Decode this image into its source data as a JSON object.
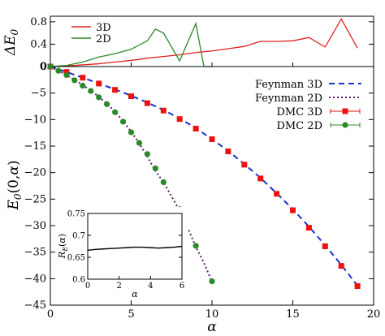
{
  "chart_data": [
    {
      "type": "line",
      "ylabel": "ΔE0",
      "xlim": [
        0,
        20
      ],
      "ylim": [
        0,
        0.9
      ],
      "yticks": [
        "0",
        "0.4",
        "0.8"
      ],
      "legend_position": "top-left",
      "series": [
        {
          "name": "3D",
          "color": "#e02020",
          "x": [
            0,
            1,
            2,
            3,
            4,
            5,
            6,
            7,
            8,
            9,
            10,
            11,
            12,
            13,
            14,
            15,
            16,
            17,
            18,
            19
          ],
          "y": [
            0.0,
            0.01,
            0.03,
            0.05,
            0.08,
            0.11,
            0.15,
            0.18,
            0.21,
            0.25,
            0.28,
            0.32,
            0.36,
            0.45,
            0.45,
            0.46,
            0.52,
            0.35,
            0.85,
            0.33
          ]
        },
        {
          "name": "2D",
          "color": "#2a8a2a",
          "x": [
            0,
            1,
            2,
            3,
            4,
            5,
            6,
            6.5,
            7,
            8,
            9,
            9.5,
            10
          ],
          "y": [
            0.0,
            0.02,
            0.08,
            0.17,
            0.23,
            0.31,
            0.46,
            0.67,
            0.6,
            0.1,
            0.77,
            0.0,
            0.0
          ]
        }
      ]
    },
    {
      "type": "scatter",
      "xlabel": "α",
      "ylabel": "E0(0,α)",
      "xlim": [
        0,
        20
      ],
      "ylim": [
        -45,
        0
      ],
      "xticks": [
        "0",
        "5",
        "10",
        "15",
        "20"
      ],
      "yticks": [
        "0",
        "-5",
        "-10",
        "-15",
        "-20",
        "-25",
        "-30",
        "-35",
        "-40",
        "-45"
      ],
      "legend_position": "top-right",
      "series": [
        {
          "name": "Feynman 3D",
          "style": "dashed",
          "color": "#1a2fd0",
          "x": [
            0,
            1,
            2,
            3,
            4,
            5,
            6,
            7,
            8,
            9,
            10,
            11,
            12,
            13,
            14,
            15,
            16,
            17,
            18,
            19
          ],
          "y": [
            0,
            -1.02,
            -2.1,
            -3.2,
            -4.3,
            -5.5,
            -6.8,
            -8.2,
            -9.8,
            -11.6,
            -13.7,
            -15.9,
            -18.4,
            -21.0,
            -23.9,
            -26.9,
            -30.2,
            -33.7,
            -37.4,
            -41.3
          ]
        },
        {
          "name": "Feynman 2D",
          "style": "dotted",
          "color": "#5a1a6a",
          "x": [
            0,
            0.5,
            1,
            1.5,
            2,
            2.5,
            3,
            3.5,
            4,
            4.5,
            5,
            5.5,
            6,
            6.5,
            7,
            7.5,
            8,
            8.5,
            9,
            9.5,
            10
          ],
          "y": [
            0,
            -0.8,
            -1.6,
            -2.5,
            -3.5,
            -4.5,
            -5.7,
            -7.0,
            -8.5,
            -10.3,
            -12.3,
            -14.5,
            -17.0,
            -19.7,
            -21.8,
            -24.5,
            -27.2,
            -30.4,
            -34.0,
            -37.0,
            -40.6
          ]
        },
        {
          "name": "DMC 3D",
          "marker": "square",
          "color": "#ee1111",
          "x": [
            0,
            1,
            2,
            3,
            4,
            5,
            6,
            7,
            8,
            9,
            10,
            11,
            12,
            13,
            14,
            15,
            16,
            17,
            18,
            19
          ],
          "y": [
            0,
            -1.02,
            -2.1,
            -3.2,
            -4.4,
            -5.6,
            -6.9,
            -8.3,
            -9.9,
            -11.7,
            -13.7,
            -16.0,
            -18.5,
            -21.1,
            -24.0,
            -27.1,
            -30.4,
            -33.9,
            -37.6,
            -41.4
          ]
        },
        {
          "name": "DMC 2D",
          "marker": "circle",
          "color": "#2a8a2a",
          "x": [
            0,
            0.5,
            1,
            1.5,
            2,
            2.5,
            3,
            3.5,
            4,
            4.5,
            5,
            5.5,
            6,
            6.5,
            7,
            8,
            9,
            10
          ],
          "y": [
            0,
            -0.8,
            -1.6,
            -2.6,
            -3.6,
            -4.6,
            -5.8,
            -7.1,
            -8.6,
            -10.4,
            -12.4,
            -14.4,
            -16.5,
            -19.2,
            -21.8,
            -26.9,
            -33.8,
            -40.5
          ]
        }
      ]
    },
    {
      "type": "line",
      "xlabel": "α",
      "ylabel": "RE(α)",
      "xlim": [
        0,
        6
      ],
      "ylim": [
        0.6,
        0.75
      ],
      "xticks": [
        "0",
        "2",
        "4",
        "6"
      ],
      "yticks": [
        "0.6",
        "0.65",
        "0.7",
        "0.75"
      ],
      "series": [
        {
          "color": "#000000",
          "x": [
            0,
            0.5,
            1,
            1.5,
            2,
            2.5,
            3,
            3.5,
            4,
            4.5,
            5,
            5.5,
            6
          ],
          "y": [
            0.666,
            0.668,
            0.669,
            0.67,
            0.671,
            0.672,
            0.673,
            0.673,
            0.672,
            0.671,
            0.672,
            0.673,
            0.675
          ]
        }
      ]
    }
  ]
}
